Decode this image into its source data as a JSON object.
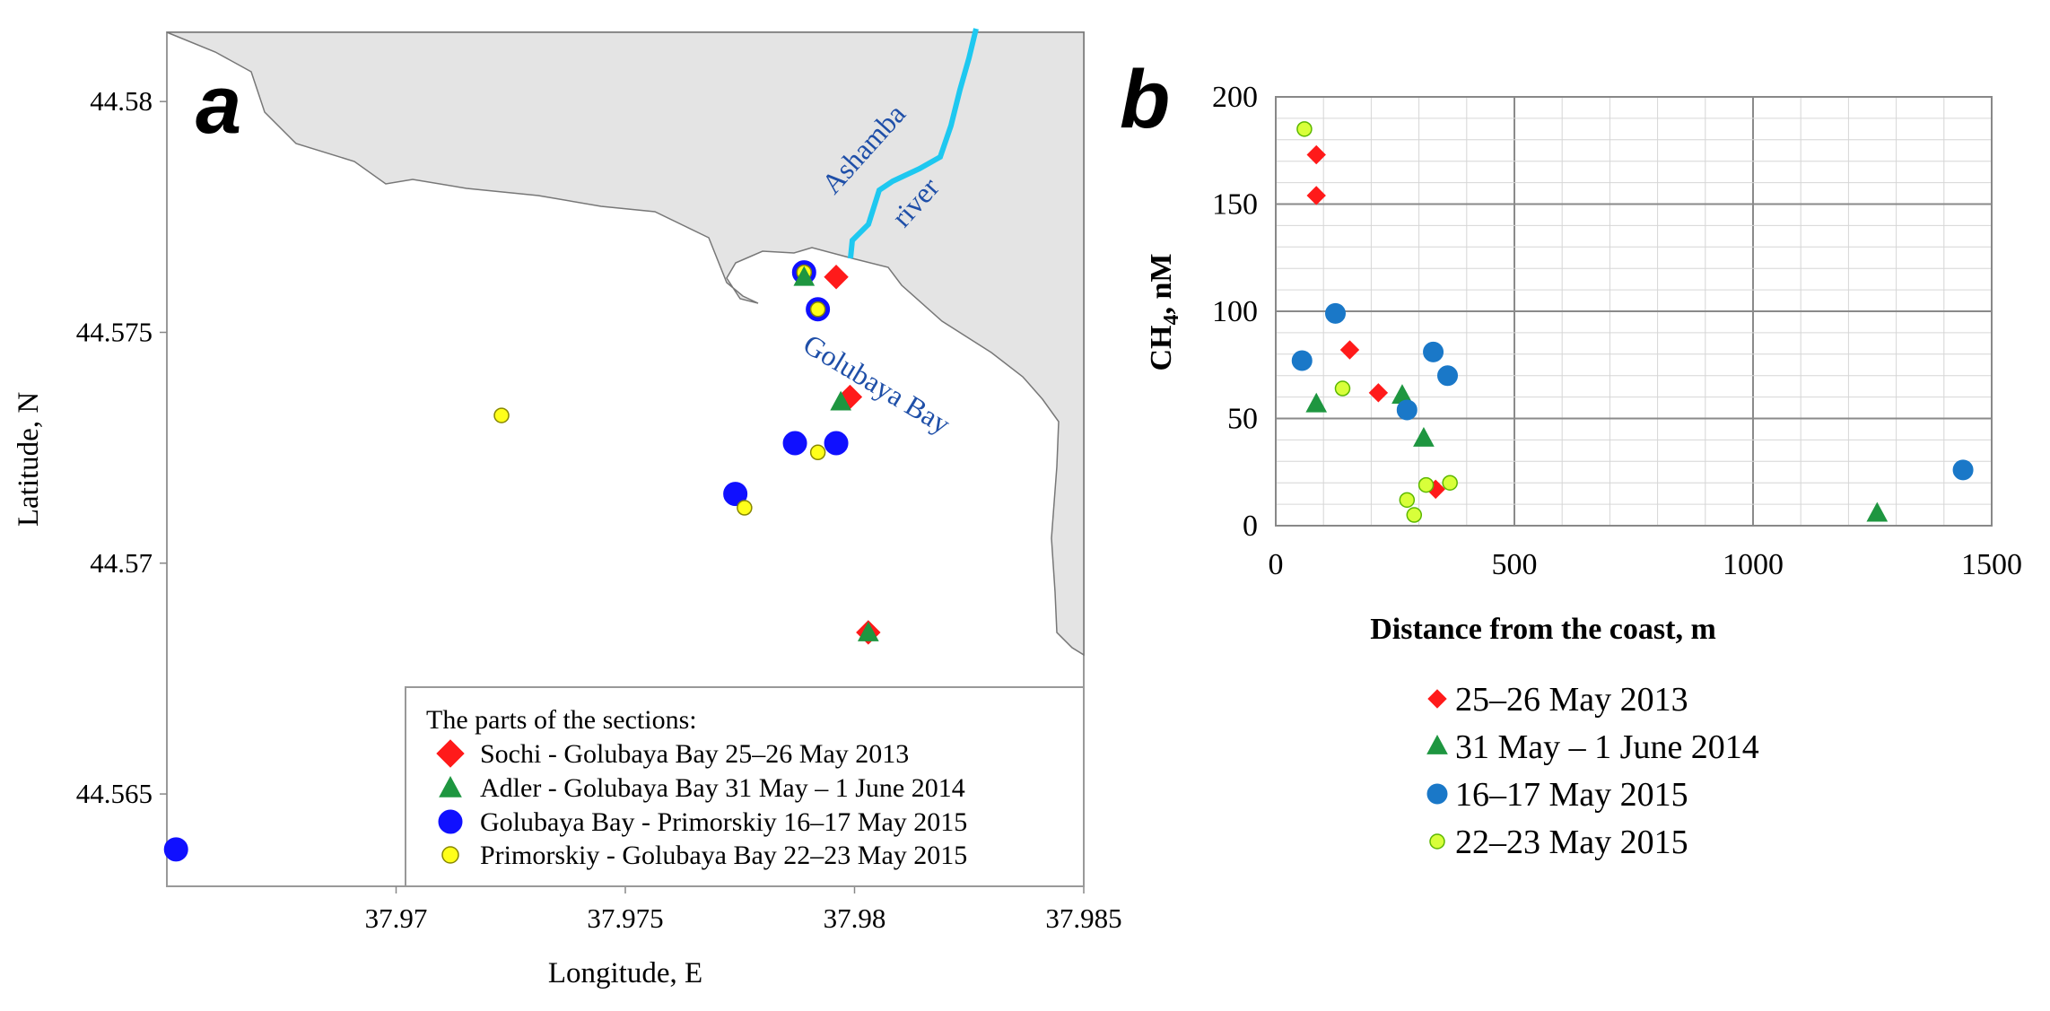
{
  "colors": {
    "land": "#e4e4e4",
    "river": "#1ec8f0",
    "map_label": "#1f4fa8",
    "red": "#ff1a1a",
    "green": "#1e9640",
    "blue": "#1010ff",
    "yellow": "#ffff1a",
    "blue_b": "#1a78c8",
    "lime_b": "#d8ff3a",
    "lime_stroke": "#5cb800"
  },
  "chart_data": [
    {
      "type": "scatter",
      "panel_label": "a",
      "xlabel": "Longitude, E",
      "ylabel": "Latitude, N",
      "xlim": [
        37.965,
        37.985
      ],
      "ylim": [
        44.563,
        44.5815
      ],
      "x_ticks": [
        "37.97",
        "37.975",
        "37.98",
        "37.985"
      ],
      "y_ticks": [
        "44.58",
        "44.575",
        "44.57",
        "44.565"
      ],
      "map_labels": {
        "river_1": "Ashamba",
        "river_2": "river",
        "bay": "Golubaya Bay"
      },
      "legend": {
        "title": "The parts of the sections:",
        "entries": [
          "Sochi - Golubaya Bay 25–26 May 2013",
          "Adler - Golubaya Bay 31 May – 1 June 2014",
          "Golubaya Bay - Primorskiy 16–17 May 2015",
          "Primorskiy - Golubaya Bay 22–23 May 2015"
        ]
      },
      "series": [
        {
          "name": "Sochi - Golubaya Bay 25–26 May 2013",
          "marker": "diamond",
          "color": "#ff1a1a",
          "points": [
            [
              37.9796,
              44.5762
            ],
            [
              37.9799,
              44.5736
            ],
            [
              37.9803,
              44.5685
            ]
          ]
        },
        {
          "name": "Adler - Golubaya Bay 31 May – 1 June 2014",
          "marker": "triangle",
          "color": "#1e9640",
          "points": [
            [
              37.9789,
              44.5762
            ],
            [
              37.9797,
              44.5735
            ],
            [
              37.9803,
              44.5685
            ]
          ]
        },
        {
          "name": "Golubaya Bay - Primorskiy 16–17 May 2015",
          "marker": "circle",
          "color": "#1010ff",
          "points": [
            [
              37.9789,
              44.5763
            ],
            [
              37.9792,
              44.5755
            ],
            [
              37.9787,
              44.5726
            ],
            [
              37.9796,
              44.5726
            ],
            [
              37.9774,
              44.5715
            ],
            [
              37.9652,
              44.5638
            ]
          ]
        },
        {
          "name": "Primorskiy - Golubaya Bay 22–23 May 2015",
          "marker": "circle-small",
          "color": "#ffff1a",
          "points": [
            [
              37.9789,
              44.5763
            ],
            [
              37.9792,
              44.5755
            ],
            [
              37.9723,
              44.5732
            ],
            [
              37.9792,
              44.5724
            ],
            [
              37.9776,
              44.5712
            ]
          ]
        }
      ]
    },
    {
      "type": "scatter",
      "panel_label": "b",
      "xlabel": "Distance from the coast, m",
      "ylabel_main": "CH",
      "ylabel_sub": "4",
      "ylabel_rest": ", nM",
      "xlim": [
        0,
        1500
      ],
      "ylim": [
        0,
        200
      ],
      "x_ticks": [
        "0",
        "500",
        "1000",
        "1500"
      ],
      "y_ticks": [
        "0",
        "50",
        "100",
        "150",
        "200"
      ],
      "grid": true,
      "legend": {
        "entries": [
          "25–26 May 2013",
          "31 May – 1 June 2014",
          "16–17 May 2015",
          "22–23 May 2015"
        ]
      },
      "series": [
        {
          "name": "25–26 May 2013",
          "marker": "diamond",
          "color": "#ff1a1a",
          "points": [
            [
              85,
              173
            ],
            [
              85,
              154
            ],
            [
              155,
              82
            ],
            [
              215,
              62
            ],
            [
              335,
              17
            ]
          ]
        },
        {
          "name": "31 May – 1 June 2014",
          "marker": "triangle",
          "color": "#1e9640",
          "points": [
            [
              85,
              57
            ],
            [
              265,
              61
            ],
            [
              310,
              41
            ],
            [
              1260,
              6
            ]
          ]
        },
        {
          "name": "16–17 May 2015",
          "marker": "circle",
          "color": "#1a78c8",
          "points": [
            [
              55,
              77
            ],
            [
              125,
              99
            ],
            [
              275,
              54
            ],
            [
              330,
              81
            ],
            [
              360,
              70
            ],
            [
              1440,
              26
            ]
          ]
        },
        {
          "name": "22–23 May 2015",
          "marker": "circle-small",
          "color": "#d8ff3a",
          "points": [
            [
              60,
              185
            ],
            [
              140,
              64
            ],
            [
              275,
              12
            ],
            [
              290,
              5
            ],
            [
              315,
              19
            ],
            [
              365,
              20
            ]
          ]
        }
      ]
    }
  ]
}
